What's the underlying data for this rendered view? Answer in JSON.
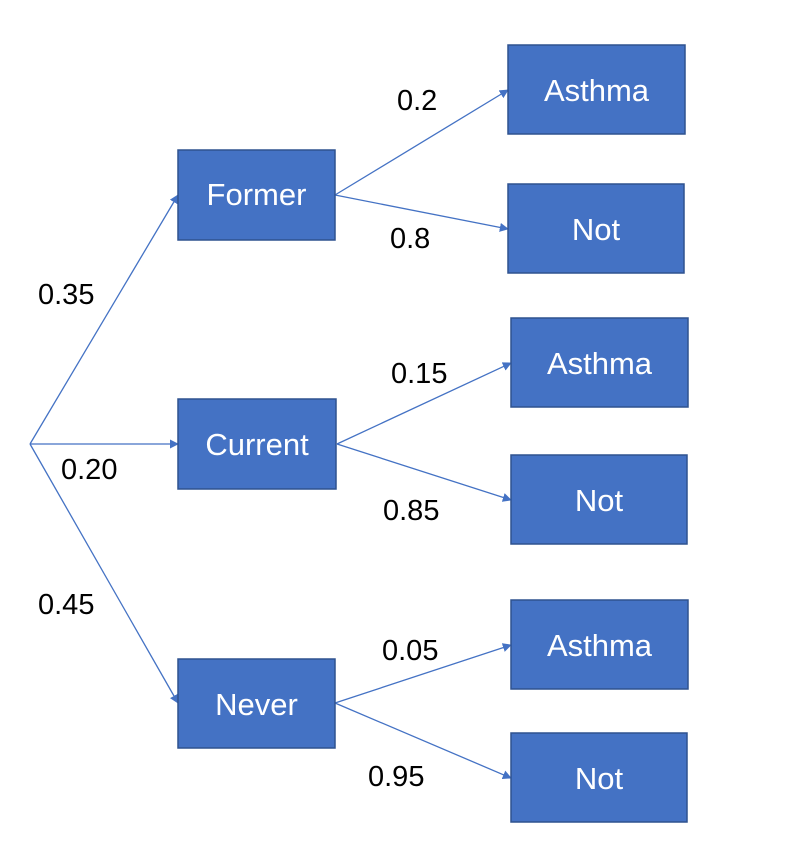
{
  "tree": {
    "level1": [
      {
        "label": "Former",
        "prob": "0.35"
      },
      {
        "label": "Current",
        "prob": "0.20"
      },
      {
        "label": "Never",
        "prob": "0.45"
      }
    ],
    "level2": [
      {
        "label": "Asthma",
        "prob": "0.2"
      },
      {
        "label": "Not",
        "prob": "0.8"
      },
      {
        "label": "Asthma",
        "prob": "0.15"
      },
      {
        "label": "Not",
        "prob": "0.85"
      },
      {
        "label": "Asthma",
        "prob": "0.05"
      },
      {
        "label": "Not",
        "prob": "0.95"
      }
    ]
  },
  "colors": {
    "box_fill": "#4472c4",
    "box_border": "#2f528f",
    "edge": "#4472c4",
    "box_text": "#ffffff",
    "prob_text": "#000000"
  }
}
